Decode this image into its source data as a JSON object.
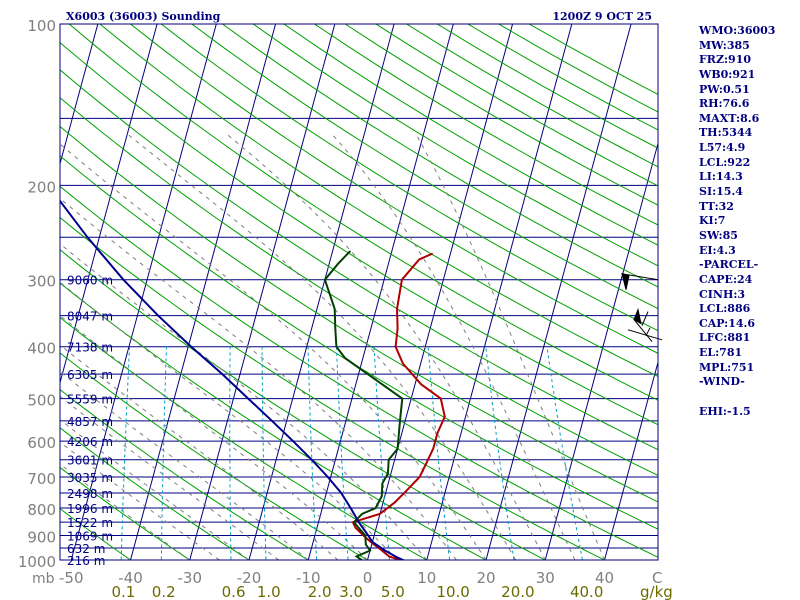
{
  "chart_data": {
    "type": "line",
    "title_left": "X6003 (36003) Sounding",
    "title_right": "1200Z  9 OCT 25",
    "y_unit_label": "mb",
    "pressure_ticks": [
      100,
      200,
      300,
      400,
      500,
      600,
      700,
      800,
      900,
      1000
    ],
    "pressure_lines": [
      100,
      150,
      200,
      250,
      300,
      350,
      400,
      450,
      500,
      550,
      600,
      650,
      700,
      750,
      800,
      850,
      900,
      950,
      1000
    ],
    "temp_ticks": [
      -50,
      -40,
      -30,
      -20,
      -10,
      0,
      10,
      20,
      30,
      40
    ],
    "temp_unit_label": "C",
    "mixing_ratio_ticks": [
      "0.1",
      "0.2",
      "0.6",
      "1.0",
      "2.0",
      "3.0",
      "5.0",
      "10.0",
      "20.0",
      "40.0"
    ],
    "mixing_ratio_unit": "g/kg",
    "height_labels": [
      {
        "p": 300,
        "text": "9060 m"
      },
      {
        "p": 350,
        "text": "8047 m"
      },
      {
        "p": 400,
        "text": "7138 m"
      },
      {
        "p": 450,
        "text": "6305 m"
      },
      {
        "p": 500,
        "text": "5559 m"
      },
      {
        "p": 550,
        "text": "4857 m"
      },
      {
        "p": 600,
        "text": "4206 m"
      },
      {
        "p": 650,
        "text": "3601 m"
      },
      {
        "p": 700,
        "text": "3035 m"
      },
      {
        "p": 750,
        "text": "2498 m"
      },
      {
        "p": 800,
        "text": "1996 m"
      },
      {
        "p": 850,
        "text": "1522 m"
      },
      {
        "p": 900,
        "text": "1069 m"
      },
      {
        "p": 950,
        "text": "632 m"
      },
      {
        "p": 1000,
        "text": "216 m"
      }
    ],
    "series": [
      {
        "name": "Temperature",
        "color": "#b00000",
        "points": [
          [
            1015,
            7.5
          ],
          [
            1000,
            5.5
          ],
          [
            985,
            3.5
          ],
          [
            960,
            2.0
          ],
          [
            925,
            -0.3
          ],
          [
            900,
            -1.8
          ],
          [
            870,
            -3.5
          ],
          [
            850,
            -4.2
          ],
          [
            820,
            0.0
          ],
          [
            800,
            1.0
          ],
          [
            780,
            2.0
          ],
          [
            740,
            3.5
          ],
          [
            700,
            5.0
          ],
          [
            660,
            5.5
          ],
          [
            620,
            6.0
          ],
          [
            580,
            6.0
          ],
          [
            540,
            6.5
          ],
          [
            500,
            5.0
          ],
          [
            470,
            1.0
          ],
          [
            430,
            -3.0
          ],
          [
            400,
            -5.0
          ],
          [
            370,
            -5.5
          ],
          [
            340,
            -6.5
          ],
          [
            300,
            -7.0
          ],
          [
            275,
            -5.0
          ],
          [
            268,
            -3.0
          ]
        ]
      },
      {
        "name": "Dewpoint",
        "color": "#004000",
        "points": [
          [
            1015,
            0.5
          ],
          [
            1000,
            -1.0
          ],
          [
            985,
            -2.0
          ],
          [
            960,
            0.0
          ],
          [
            935,
            -1.0
          ],
          [
            900,
            -1.5
          ],
          [
            870,
            -3.0
          ],
          [
            850,
            -4.0
          ],
          [
            820,
            -3.0
          ],
          [
            800,
            -1.0
          ],
          [
            760,
            -0.5
          ],
          [
            720,
            -1.0
          ],
          [
            690,
            -0.5
          ],
          [
            650,
            -1.0
          ],
          [
            620,
            0.0
          ],
          [
            580,
            -0.5
          ],
          [
            540,
            -1.0
          ],
          [
            500,
            -1.5
          ],
          [
            460,
            -7.0
          ],
          [
            420,
            -13.0
          ],
          [
            400,
            -15.0
          ],
          [
            370,
            -16.0
          ],
          [
            340,
            -17.0
          ],
          [
            300,
            -20.0
          ],
          [
            280,
            -18.5
          ],
          [
            265,
            -17.0
          ]
        ]
      },
      {
        "name": "Parcel",
        "color": "#000090",
        "points": [
          [
            1015,
            7.5
          ],
          [
            990,
            5.0
          ],
          [
            960,
            2.5
          ],
          [
            925,
            0.0
          ],
          [
            900,
            -1.0
          ],
          [
            850,
            -3.2
          ],
          [
            800,
            -5.2
          ],
          [
            750,
            -7.5
          ],
          [
            700,
            -10.5
          ],
          [
            650,
            -14.0
          ],
          [
            600,
            -18.0
          ],
          [
            550,
            -22.5
          ],
          [
            500,
            -27.5
          ],
          [
            450,
            -33.0
          ],
          [
            400,
            -39.5
          ],
          [
            350,
            -46.5
          ],
          [
            300,
            -54.0
          ],
          [
            250,
            -62.0
          ],
          [
            200,
            -71.0
          ],
          [
            150,
            -82.0
          ],
          [
            120,
            -90.0
          ]
        ]
      }
    ],
    "wind_barbs": [
      {
        "p": 300,
        "label": "long barb"
      },
      {
        "p": 350,
        "label": "flagged barb"
      },
      {
        "p": 385,
        "label": "short barb"
      }
    ]
  },
  "indices": [
    "WMO:36003",
    "MW:385",
    "FRZ:910",
    "WB0:921",
    "PW:0.51",
    "RH:76.6",
    "MAXT:8.6",
    "TH:5344",
    "L57:4.9",
    "LCL:922",
    "LI:14.3",
    "SI:15.4",
    "TT:32",
    "KI:7",
    "SW:85",
    "EI:4.3",
    "-PARCEL-",
    "CAPE:24",
    "CINH:3",
    "LCL:886",
    "CAP:14.6",
    "LFC:881",
    "EL:781",
    "MPL:751",
    "-WIND-",
    "",
    "EHI:-1.5"
  ],
  "colors": {
    "frame": "#000080",
    "isobar": "#000080",
    "isotherm": "#000080",
    "dry_adiabat": "#00a000",
    "moist_adiabat": "#7f7f7f",
    "mixing_ratio": "#00a0c0",
    "axis_text": "#808080",
    "mixing_text": "#6b6b00"
  }
}
